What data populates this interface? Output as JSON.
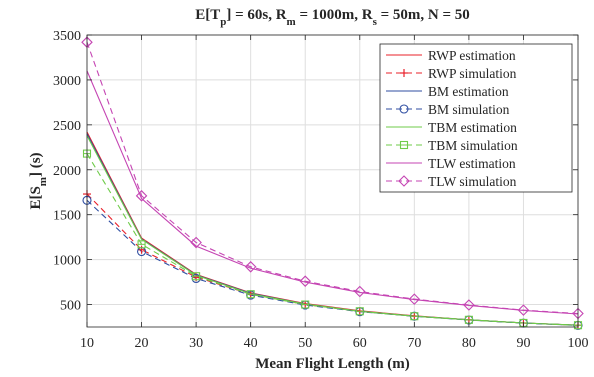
{
  "chart_data": {
    "type": "line",
    "title_parts": [
      {
        "text": "E[T",
        "sub": false
      },
      {
        "text": "p",
        "sub": true
      },
      {
        "text": "] = 60s, R",
        "sub": false
      },
      {
        "text": "m",
        "sub": true
      },
      {
        "text": " = 1000m, R",
        "sub": false
      },
      {
        "text": "s",
        "sub": true
      },
      {
        "text": " = 50m, N = 50",
        "sub": false
      }
    ],
    "xlabel": "Mean Flight Length (m)",
    "ylabel_parts": [
      {
        "text": "E[S",
        "sub": false
      },
      {
        "text": "m",
        "sub": true
      },
      {
        "text": "] (s)",
        "sub": false
      }
    ],
    "x": [
      10,
      20,
      30,
      40,
      50,
      60,
      70,
      80,
      90,
      100
    ],
    "xlim": [
      10,
      100
    ],
    "ylim": [
      250,
      3500
    ],
    "xticks": [
      10,
      20,
      30,
      40,
      50,
      60,
      70,
      80,
      90,
      100
    ],
    "yticks": [
      500,
      1000,
      1500,
      2000,
      2500,
      3000,
      3500
    ],
    "grid": true,
    "legend_position": "top-right",
    "series": [
      {
        "name": "RWP estimation",
        "color": "#e8202a",
        "style": "solid",
        "marker": "none",
        "values": [
          2420,
          1240,
          835,
          630,
          510,
          430,
          375,
          330,
          295,
          270
        ]
      },
      {
        "name": "RWP simulation",
        "color": "#e8202a",
        "style": "dashed",
        "marker": "plus",
        "values": [
          1730,
          1110,
          805,
          615,
          500,
          425,
          370,
          330,
          295,
          270
        ]
      },
      {
        "name": "BM estimation",
        "color": "#2f4ea2",
        "style": "solid",
        "marker": "none",
        "values": [
          2400,
          1230,
          830,
          625,
          505,
          425,
          370,
          330,
          295,
          270
        ]
      },
      {
        "name": "BM simulation",
        "color": "#2f4ea2",
        "style": "dashed",
        "marker": "circle",
        "values": [
          1660,
          1090,
          790,
          605,
          495,
          420,
          370,
          328,
          293,
          268
        ]
      },
      {
        "name": "TBM estimation",
        "color": "#6fcb4a",
        "style": "solid",
        "marker": "none",
        "values": [
          2380,
          1225,
          825,
          620,
          505,
          425,
          370,
          330,
          295,
          270
        ]
      },
      {
        "name": "TBM simulation",
        "color": "#6fcb4a",
        "style": "dashed",
        "marker": "square",
        "values": [
          2180,
          1170,
          815,
          615,
          500,
          425,
          370,
          330,
          295,
          270
        ]
      },
      {
        "name": "TLW estimation",
        "color": "#c545b3",
        "style": "solid",
        "marker": "none",
        "values": [
          3100,
          1680,
          1150,
          905,
          750,
          635,
          555,
          490,
          435,
          395
        ]
      },
      {
        "name": "TLW simulation",
        "color": "#c545b3",
        "style": "dashed",
        "marker": "diamond",
        "values": [
          3420,
          1710,
          1190,
          920,
          760,
          645,
          560,
          495,
          438,
          400
        ]
      }
    ]
  }
}
